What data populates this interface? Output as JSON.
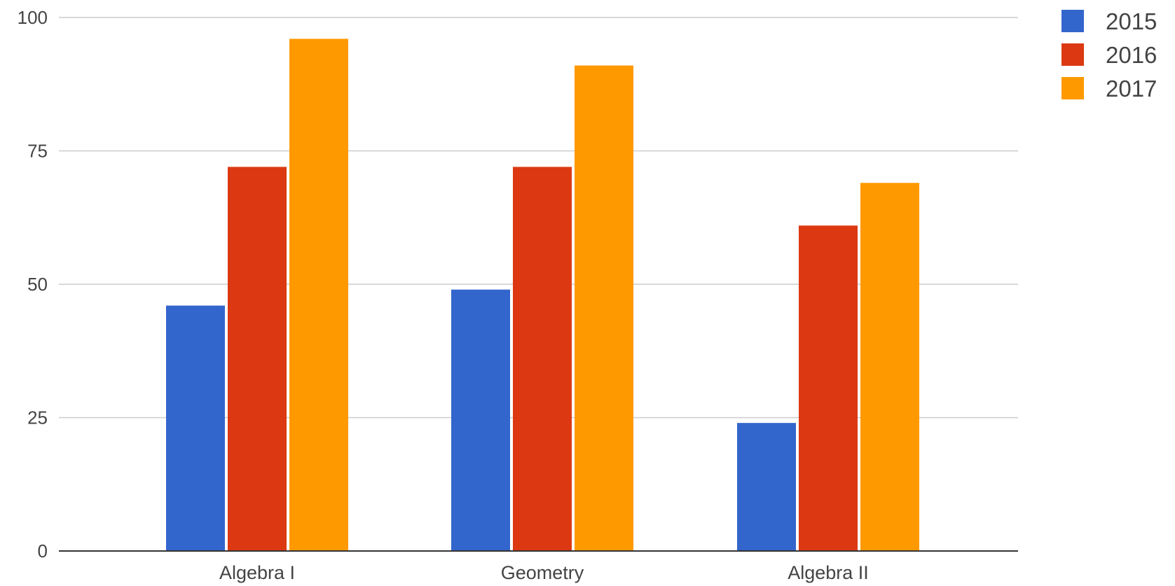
{
  "chart_data": {
    "type": "bar",
    "categories": [
      "Algebra I",
      "Geometry",
      "Algebra II"
    ],
    "series": [
      {
        "name": "2015",
        "color": "#3366cc",
        "values": [
          46,
          49,
          24
        ]
      },
      {
        "name": "2016",
        "color": "#dc3912",
        "values": [
          72,
          72,
          61
        ]
      },
      {
        "name": "2017",
        "color": "#ff9900",
        "values": [
          96,
          91,
          69
        ]
      }
    ],
    "ylim": [
      0,
      100
    ],
    "yticks": [
      0,
      25,
      50,
      75,
      100
    ],
    "grid": true,
    "legend": "right",
    "title": "",
    "xlabel": "",
    "ylabel": ""
  }
}
